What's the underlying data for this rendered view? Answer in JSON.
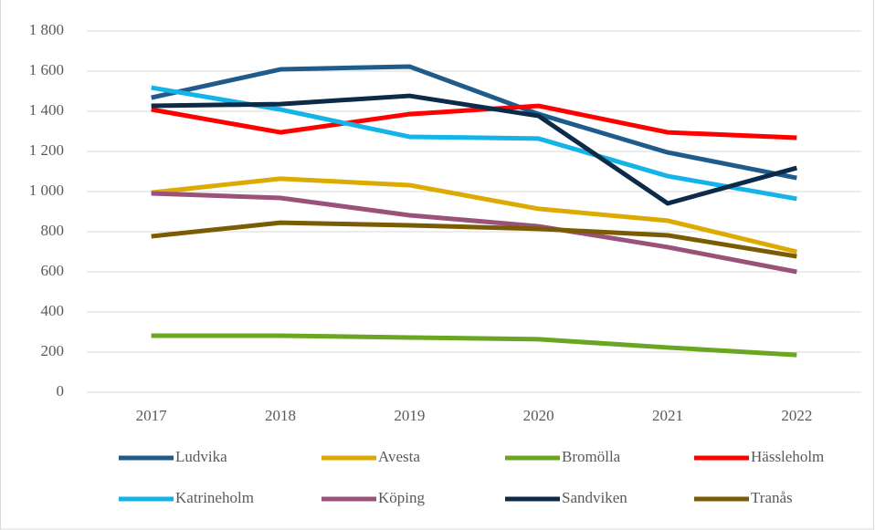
{
  "chart_data": {
    "type": "line",
    "categories": [
      "2017",
      "2018",
      "2019",
      "2020",
      "2021",
      "2022"
    ],
    "series": [
      {
        "name": "Ludvika",
        "color": "#1f5c8b",
        "values": [
          1468,
          1609,
          1623,
          1386,
          1195,
          1068
        ]
      },
      {
        "name": "Avesta",
        "color": "#dcaa00",
        "values": [
          995,
          1064,
          1032,
          914,
          855,
          700
        ]
      },
      {
        "name": "Bromölla",
        "color": "#6aa621",
        "values": [
          282,
          282,
          273,
          264,
          223,
          186
        ]
      },
      {
        "name": "Hässleholm",
        "color": "#ff0000",
        "values": [
          1409,
          1295,
          1386,
          1427,
          1295,
          1268
        ]
      },
      {
        "name": "Katrineholm",
        "color": "#14b4e8",
        "values": [
          1518,
          1409,
          1273,
          1264,
          1077,
          964
        ]
      },
      {
        "name": "Köping",
        "color": "#99527a",
        "values": [
          991,
          968,
          882,
          827,
          723,
          600
        ]
      },
      {
        "name": "Sandviken",
        "color": "#0c2b49",
        "values": [
          1427,
          1436,
          1477,
          1377,
          941,
          1118
        ]
      },
      {
        "name": "Tranås",
        "color": "#7a5c05",
        "values": [
          777,
          845,
          832,
          814,
          782,
          677
        ]
      }
    ],
    "ylim": [
      0,
      1800
    ],
    "yticks": [
      0,
      200,
      400,
      600,
      800,
      {
        "value": 1000,
        "label": "1 000"
      },
      {
        "value": 1200,
        "label": "1 200"
      },
      {
        "value": 1400,
        "label": "1 400"
      },
      {
        "value": 1600,
        "label": "1 600"
      },
      {
        "value": 1800,
        "label": "1 800"
      }
    ],
    "grid": true,
    "legend": "bottom"
  }
}
